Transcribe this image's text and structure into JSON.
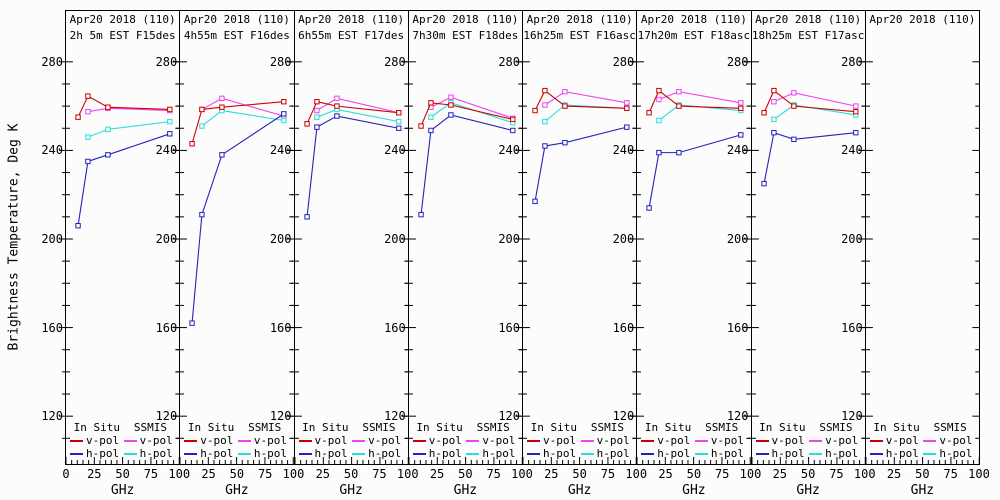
{
  "y_axis": {
    "title": "Brightness Temperature, Deg K",
    "ticks": [
      280,
      240,
      200,
      160,
      120
    ],
    "minor_step": 10,
    "range": [
      98.4,
      289.4
    ]
  },
  "x_axis": {
    "ticks": [
      0,
      25,
      50,
      75,
      100
    ],
    "minor_step": 5,
    "range": [
      0,
      100
    ],
    "unit_label": "GHz"
  },
  "legend": {
    "groups": [
      {
        "header": "In Situ",
        "items": [
          {
            "label": "v-pol",
            "series": "in_situ_v"
          },
          {
            "label": "h-pol",
            "series": "in_situ_h"
          }
        ]
      },
      {
        "header": "SSMIS",
        "items": [
          {
            "label": "v-pol",
            "series": "ssmis_v"
          },
          {
            "label": "h-pol",
            "series": "ssmis_h"
          }
        ]
      }
    ]
  },
  "colors": {
    "in_situ_v": "#cc0000",
    "in_situ_h": "#2222bb",
    "ssmis_v": "#ee44ee",
    "ssmis_h": "#2adddd",
    "axis": "#000000",
    "background": "#fcfcfc"
  },
  "chart_data": {
    "type": "line",
    "ylabel": "Brightness Temperature, Deg K",
    "xlabel": "GHz",
    "ylim": [
      98.4,
      289.4
    ],
    "xlim": [
      0,
      100
    ],
    "grid": false,
    "legend_position": "bottom-inside-each-panel",
    "x_ghz_in_situ": [
      10.65,
      19.35,
      37,
      91.655
    ],
    "x_ghz_ssmis": [
      19.35,
      37,
      91.655
    ],
    "panels": [
      {
        "title_line1": "Apr20 2018 (110)",
        "title_line2": "2h 5m EST F15des",
        "series": {
          "in_situ_v": [
            255,
            264.5,
            259.5,
            258.5
          ],
          "in_situ_h": [
            206,
            235,
            238,
            247.5
          ],
          "ssmis_v": [
            257.5,
            259,
            258
          ],
          "ssmis_h": [
            246,
            249.5,
            253
          ]
        }
      },
      {
        "title_line1": "Apr20 2018 (110)",
        "title_line2": "4h55m EST F16des",
        "series": {
          "in_situ_v": [
            243,
            258.5,
            259.5,
            262
          ],
          "in_situ_h": [
            162,
            211,
            238,
            256.5
          ],
          "ssmis_v": [
            258.5,
            263.5,
            255.5
          ],
          "ssmis_h": [
            251,
            258,
            253.5
          ]
        }
      },
      {
        "title_line1": "Apr20 2018 (110)",
        "title_line2": "6h55m EST F17des",
        "series": {
          "in_situ_v": [
            252,
            262,
            260,
            257
          ],
          "in_situ_h": [
            210,
            250.5,
            255.5,
            250
          ],
          "ssmis_v": [
            258,
            263.5,
            257
          ],
          "ssmis_h": [
            255,
            258.5,
            253
          ]
        }
      },
      {
        "title_line1": "Apr20 2018 (110)",
        "title_line2": "7h30m EST F18des",
        "series": {
          "in_situ_v": [
            251,
            261.5,
            260.5,
            254
          ],
          "in_situ_h": [
            211,
            249,
            256,
            249
          ],
          "ssmis_v": [
            259.5,
            264,
            254.5
          ],
          "ssmis_h": [
            255,
            261.5,
            252.5
          ]
        }
      },
      {
        "title_line1": "Apr20 2018 (110)",
        "title_line2": "16h25m EST F16asc",
        "series": {
          "in_situ_v": [
            258,
            267,
            260,
            259
          ],
          "in_situ_h": [
            217,
            242,
            243.5,
            250.5
          ],
          "ssmis_v": [
            260.5,
            266.5,
            261.5
          ],
          "ssmis_h": [
            253,
            260.5,
            259
          ]
        }
      },
      {
        "title_line1": "Apr20 2018 (110)",
        "title_line2": "17h20m EST F18asc",
        "series": {
          "in_situ_v": [
            257,
            267,
            260,
            259
          ],
          "in_situ_h": [
            214,
            239,
            239,
            247
          ],
          "ssmis_v": [
            263,
            266.5,
            261.5
          ],
          "ssmis_h": [
            253.5,
            260.5,
            258
          ]
        }
      },
      {
        "title_line1": "Apr20 2018 (110)",
        "title_line2": "18h25m EST F17asc",
        "series": {
          "in_situ_v": [
            257,
            267,
            260,
            257.5
          ],
          "in_situ_h": [
            225,
            248,
            245,
            248
          ],
          "ssmis_v": [
            262,
            266,
            260
          ],
          "ssmis_h": [
            254,
            260.5,
            256
          ]
        }
      },
      {
        "title_line1": "Apr20 2018 (110)",
        "title_line2": "",
        "series": {}
      }
    ]
  }
}
